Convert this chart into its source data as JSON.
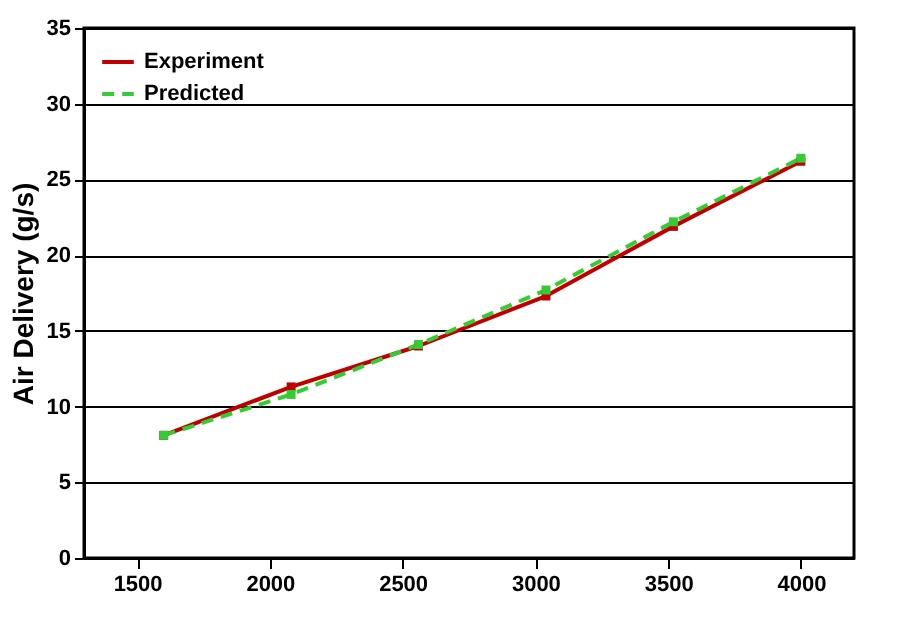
{
  "chart_data": {
    "type": "line",
    "ylabel": "Air Delivery (g/s)",
    "x": [
      1600,
      2080,
      2560,
      3040,
      3520,
      4000
    ],
    "series": [
      {
        "name": "Experiment",
        "color": "#c00000",
        "line_style": "solid",
        "values": [
          8.1,
          11.3,
          14.0,
          17.3,
          21.9,
          26.2
        ]
      },
      {
        "name": "Predicted",
        "color": "#33cc33",
        "line_style": "dashed",
        "values": [
          8.1,
          10.8,
          14.1,
          17.7,
          22.2,
          26.4
        ]
      }
    ],
    "xlim": [
      1300,
      4200
    ],
    "xticks": [
      1500,
      2000,
      2500,
      3000,
      3500,
      4000
    ],
    "ylim": [
      0,
      35
    ],
    "yticks": [
      0,
      5,
      10,
      15,
      20,
      25,
      30,
      35
    ],
    "grid": "y",
    "legend": "top left",
    "marker": "square"
  }
}
